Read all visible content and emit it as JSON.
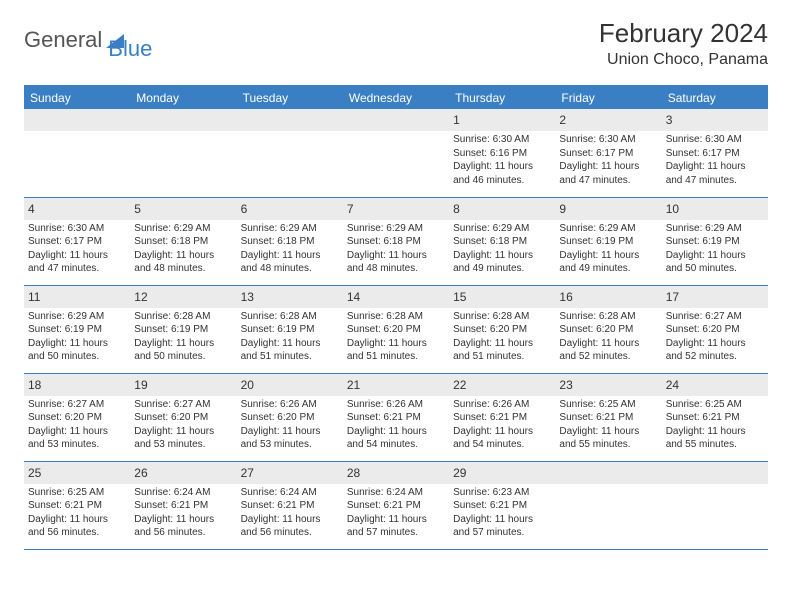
{
  "logo": {
    "text1": "General",
    "text2": "Blue"
  },
  "title": "February 2024",
  "location": "Union Choco, Panama",
  "colors": {
    "accent": "#3a7fc4",
    "header_bg": "#3a7fc4",
    "daynum_bg": "#ebebeb",
    "text": "#333333",
    "bg": "#ffffff"
  },
  "weekdays": [
    "Sunday",
    "Monday",
    "Tuesday",
    "Wednesday",
    "Thursday",
    "Friday",
    "Saturday"
  ],
  "typography": {
    "title_fontsize": 26,
    "location_fontsize": 16,
    "weekday_fontsize": 12,
    "daynum_fontsize": 12,
    "info_fontsize": 10
  },
  "first_weekday_index": 4,
  "days": [
    {
      "n": "1",
      "sunrise": "6:30 AM",
      "sunset": "6:16 PM",
      "daylight": "11 hours and 46 minutes."
    },
    {
      "n": "2",
      "sunrise": "6:30 AM",
      "sunset": "6:17 PM",
      "daylight": "11 hours and 47 minutes."
    },
    {
      "n": "3",
      "sunrise": "6:30 AM",
      "sunset": "6:17 PM",
      "daylight": "11 hours and 47 minutes."
    },
    {
      "n": "4",
      "sunrise": "6:30 AM",
      "sunset": "6:17 PM",
      "daylight": "11 hours and 47 minutes."
    },
    {
      "n": "5",
      "sunrise": "6:29 AM",
      "sunset": "6:18 PM",
      "daylight": "11 hours and 48 minutes."
    },
    {
      "n": "6",
      "sunrise": "6:29 AM",
      "sunset": "6:18 PM",
      "daylight": "11 hours and 48 minutes."
    },
    {
      "n": "7",
      "sunrise": "6:29 AM",
      "sunset": "6:18 PM",
      "daylight": "11 hours and 48 minutes."
    },
    {
      "n": "8",
      "sunrise": "6:29 AM",
      "sunset": "6:18 PM",
      "daylight": "11 hours and 49 minutes."
    },
    {
      "n": "9",
      "sunrise": "6:29 AM",
      "sunset": "6:19 PM",
      "daylight": "11 hours and 49 minutes."
    },
    {
      "n": "10",
      "sunrise": "6:29 AM",
      "sunset": "6:19 PM",
      "daylight": "11 hours and 50 minutes."
    },
    {
      "n": "11",
      "sunrise": "6:29 AM",
      "sunset": "6:19 PM",
      "daylight": "11 hours and 50 minutes."
    },
    {
      "n": "12",
      "sunrise": "6:28 AM",
      "sunset": "6:19 PM",
      "daylight": "11 hours and 50 minutes."
    },
    {
      "n": "13",
      "sunrise": "6:28 AM",
      "sunset": "6:19 PM",
      "daylight": "11 hours and 51 minutes."
    },
    {
      "n": "14",
      "sunrise": "6:28 AM",
      "sunset": "6:20 PM",
      "daylight": "11 hours and 51 minutes."
    },
    {
      "n": "15",
      "sunrise": "6:28 AM",
      "sunset": "6:20 PM",
      "daylight": "11 hours and 51 minutes."
    },
    {
      "n": "16",
      "sunrise": "6:28 AM",
      "sunset": "6:20 PM",
      "daylight": "11 hours and 52 minutes."
    },
    {
      "n": "17",
      "sunrise": "6:27 AM",
      "sunset": "6:20 PM",
      "daylight": "11 hours and 52 minutes."
    },
    {
      "n": "18",
      "sunrise": "6:27 AM",
      "sunset": "6:20 PM",
      "daylight": "11 hours and 53 minutes."
    },
    {
      "n": "19",
      "sunrise": "6:27 AM",
      "sunset": "6:20 PM",
      "daylight": "11 hours and 53 minutes."
    },
    {
      "n": "20",
      "sunrise": "6:26 AM",
      "sunset": "6:20 PM",
      "daylight": "11 hours and 53 minutes."
    },
    {
      "n": "21",
      "sunrise": "6:26 AM",
      "sunset": "6:21 PM",
      "daylight": "11 hours and 54 minutes."
    },
    {
      "n": "22",
      "sunrise": "6:26 AM",
      "sunset": "6:21 PM",
      "daylight": "11 hours and 54 minutes."
    },
    {
      "n": "23",
      "sunrise": "6:25 AM",
      "sunset": "6:21 PM",
      "daylight": "11 hours and 55 minutes."
    },
    {
      "n": "24",
      "sunrise": "6:25 AM",
      "sunset": "6:21 PM",
      "daylight": "11 hours and 55 minutes."
    },
    {
      "n": "25",
      "sunrise": "6:25 AM",
      "sunset": "6:21 PM",
      "daylight": "11 hours and 56 minutes."
    },
    {
      "n": "26",
      "sunrise": "6:24 AM",
      "sunset": "6:21 PM",
      "daylight": "11 hours and 56 minutes."
    },
    {
      "n": "27",
      "sunrise": "6:24 AM",
      "sunset": "6:21 PM",
      "daylight": "11 hours and 56 minutes."
    },
    {
      "n": "28",
      "sunrise": "6:24 AM",
      "sunset": "6:21 PM",
      "daylight": "11 hours and 57 minutes."
    },
    {
      "n": "29",
      "sunrise": "6:23 AM",
      "sunset": "6:21 PM",
      "daylight": "11 hours and 57 minutes."
    }
  ],
  "labels": {
    "sunrise": "Sunrise:",
    "sunset": "Sunset:",
    "daylight": "Daylight:"
  }
}
